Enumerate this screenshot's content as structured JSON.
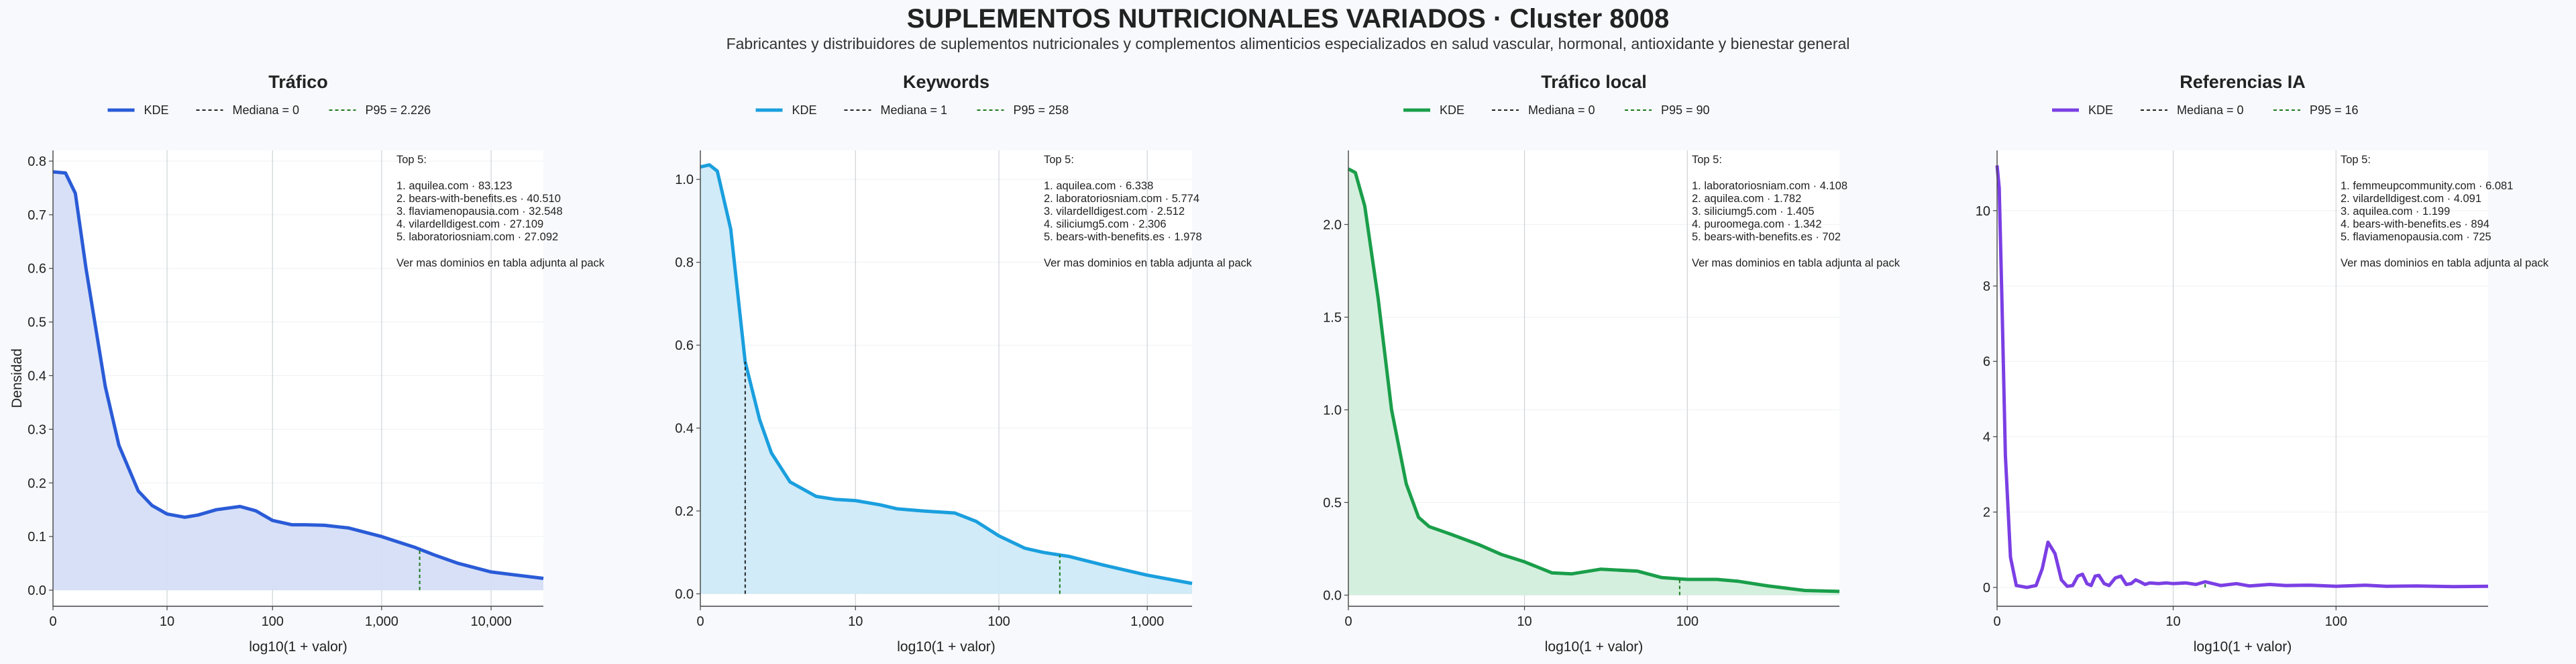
{
  "title": "SUPLEMENTOS NUTRICIONALES VARIADOS · Cluster 8008",
  "subtitle": "Fabricantes y distribuidores de suplementos nutricionales y complementos alimenticios especializados en salud vascular, hormonal, antioxidante y bienestar general",
  "chart_data": [
    {
      "type": "area",
      "title": "Tráfico",
      "xlabel": "log10(1 + valor)",
      "ylabel": "Densidad",
      "x_scale": "log10(1+x)",
      "xlim": [
        0,
        30000
      ],
      "ylim": [
        -0.03,
        0.82
      ],
      "x_ticks": [
        0,
        10,
        100,
        1000,
        10000
      ],
      "x_tick_labels": [
        "0",
        "10",
        "100",
        "1,000",
        "10,000"
      ],
      "y_ticks": [
        0,
        0.1,
        0.2,
        0.3,
        0.4,
        0.5,
        0.6,
        0.7,
        0.8
      ],
      "y_tick_labels": [
        "0.0",
        "0.1",
        "0.2",
        "0.3",
        "0.4",
        "0.5",
        "0.6",
        "0.7",
        "0.8"
      ],
      "color": "#2a5bd7",
      "fill": "#d5def7",
      "grid": true,
      "legend": [
        "KDE",
        "Mediana = 0",
        "P95 = 2.226"
      ],
      "median": 0,
      "p95": 2226,
      "series": [
        {
          "name": "KDE",
          "x": [
            0,
            0.3,
            0.6,
            1,
            2,
            3,
            5,
            7,
            10,
            15,
            20,
            30,
            50,
            70,
            100,
            150,
            200,
            300,
            500,
            1000,
            2000,
            3000,
            5000,
            10000,
            30000
          ],
          "y": [
            0.78,
            0.778,
            0.74,
            0.6,
            0.38,
            0.27,
            0.185,
            0.158,
            0.142,
            0.136,
            0.14,
            0.15,
            0.156,
            0.148,
            0.13,
            0.122,
            0.122,
            0.121,
            0.116,
            0.1,
            0.08,
            0.066,
            0.05,
            0.034,
            0.022
          ]
        }
      ],
      "annotation": {
        "heading": "Top 5:",
        "items": [
          "1. aquilea.com · 83.123",
          "2. bears-with-benefits.es · 40.510",
          "3. flaviamenopausia.com · 32.548",
          "4. vilardelldigest.com · 27.109",
          "5. laboratoriosniam.com · 27.092"
        ],
        "note": "Ver mas dominios en tabla adjunta al pack"
      }
    },
    {
      "type": "area",
      "title": "Keywords",
      "xlabel": "log10(1 + valor)",
      "ylabel": "",
      "x_scale": "log10(1+x)",
      "xlim": [
        0,
        2000
      ],
      "ylim": [
        -0.03,
        1.07
      ],
      "x_ticks": [
        0,
        10,
        100,
        1000
      ],
      "x_tick_labels": [
        "0",
        "10",
        "100",
        "1,000"
      ],
      "y_ticks": [
        0,
        0.2,
        0.4,
        0.6,
        0.8,
        1.0
      ],
      "y_tick_labels": [
        "0.0",
        "0.2",
        "0.4",
        "0.6",
        "0.8",
        "1.0"
      ],
      "color": "#1a9fde",
      "fill": "#cfeaf8",
      "grid": true,
      "legend": [
        "KDE",
        "Mediana = 1",
        "P95 = 258"
      ],
      "median": 1,
      "p95": 258,
      "series": [
        {
          "name": "KDE",
          "x": [
            0,
            0.15,
            0.3,
            0.6,
            1,
            1.5,
            2,
            3,
            5,
            7,
            10,
            15,
            20,
            30,
            50,
            70,
            100,
            150,
            200,
            300,
            500,
            1000,
            2000
          ],
          "y": [
            1.03,
            1.035,
            1.02,
            0.88,
            0.56,
            0.42,
            0.34,
            0.27,
            0.235,
            0.228,
            0.225,
            0.215,
            0.205,
            0.2,
            0.195,
            0.175,
            0.14,
            0.11,
            0.1,
            0.09,
            0.07,
            0.045,
            0.025
          ]
        }
      ],
      "annotation": {
        "heading": "Top 5:",
        "items": [
          "1. aquilea.com · 6.338",
          "2. laboratoriosniam.com · 5.774",
          "3. vilardelldigest.com · 2.512",
          "4. siliciumg5.com · 2.306",
          "5. bears-with-benefits.es · 1.978"
        ],
        "note": "Ver mas dominios en tabla adjunta al pack"
      }
    },
    {
      "type": "area",
      "title": "Tráfico local",
      "xlabel": "log10(1 + valor)",
      "ylabel": "",
      "x_scale": "log10(1+x)",
      "xlim": [
        0,
        800
      ],
      "ylim": [
        -0.06,
        2.4
      ],
      "x_ticks": [
        0,
        10,
        100
      ],
      "x_tick_labels": [
        "0",
        "10",
        "100"
      ],
      "y_ticks": [
        0,
        0.5,
        1.0,
        1.5,
        2.0
      ],
      "y_tick_labels": [
        "0.0",
        "0.5",
        "1.0",
        "1.5",
        "2.0"
      ],
      "color": "#1a9e4a",
      "fill": "#d3eedc",
      "grid": true,
      "legend": [
        "KDE",
        "Mediana = 0",
        "P95 = 90"
      ],
      "median": 0,
      "p95": 90,
      "series": [
        {
          "name": "KDE",
          "x": [
            0,
            0.1,
            0.25,
            0.5,
            0.8,
            1.2,
            1.6,
            2,
            3,
            5,
            7,
            10,
            15,
            20,
            30,
            50,
            70,
            100,
            150,
            200,
            300,
            500,
            800
          ],
          "y": [
            2.3,
            2.28,
            2.1,
            1.6,
            1.0,
            0.6,
            0.42,
            0.37,
            0.33,
            0.27,
            0.22,
            0.18,
            0.12,
            0.115,
            0.14,
            0.13,
            0.095,
            0.085,
            0.085,
            0.075,
            0.05,
            0.025,
            0.02
          ]
        }
      ],
      "annotation": {
        "heading": "Top 5:",
        "items": [
          "1. laboratoriosniam.com · 4.108",
          "2. aquilea.com · 1.782",
          "3. siliciumg5.com · 1.405",
          "4. puroomega.com · 1.342",
          "5. bears-with-benefits.es · 702"
        ],
        "note": "Ver mas dominios en tabla adjunta al pack"
      }
    },
    {
      "type": "line",
      "title": "Referencias IA",
      "xlabel": "log10(1 + valor)",
      "ylabel": "",
      "x_scale": "log10(1+x)",
      "xlim": [
        0,
        800
      ],
      "ylim": [
        -0.5,
        11.6
      ],
      "x_ticks": [
        0,
        10,
        100
      ],
      "x_tick_labels": [
        "0",
        "10",
        "100"
      ],
      "y_ticks": [
        0,
        2,
        4,
        6,
        8,
        10
      ],
      "y_tick_labels": [
        "0",
        "2",
        "4",
        "6",
        "8",
        "10"
      ],
      "color": "#7b3fe4",
      "grid": true,
      "legend": [
        "KDE",
        "Mediana = 0",
        "P95 = 16"
      ],
      "median": 0,
      "p95": 16,
      "series": [
        {
          "name": "KDE",
          "x": [
            0,
            0.03,
            0.07,
            0.12,
            0.2,
            0.3,
            0.5,
            0.7,
            0.85,
            1,
            1.2,
            1.4,
            1.6,
            1.8,
            2.0,
            2.2,
            2.4,
            2.6,
            2.8,
            3.0,
            3.3,
            3.6,
            4.0,
            4.4,
            4.8,
            5.2,
            5.6,
            6.0,
            6.5,
            7.0,
            8,
            9,
            10,
            12,
            14,
            16,
            20,
            25,
            30,
            40,
            50,
            70,
            100,
            150,
            200,
            300,
            500,
            800
          ],
          "y": [
            11.2,
            10.6,
            7.5,
            3.5,
            0.8,
            0.05,
            0.0,
            0.05,
            0.5,
            1.2,
            0.9,
            0.2,
            0.03,
            0.05,
            0.3,
            0.35,
            0.1,
            0.05,
            0.3,
            0.32,
            0.1,
            0.05,
            0.25,
            0.3,
            0.08,
            0.1,
            0.2,
            0.15,
            0.08,
            0.12,
            0.1,
            0.12,
            0.1,
            0.12,
            0.08,
            0.15,
            0.05,
            0.1,
            0.04,
            0.08,
            0.05,
            0.06,
            0.03,
            0.06,
            0.03,
            0.04,
            0.02,
            0.03
          ]
        }
      ],
      "annotation": {
        "heading": "Top 5:",
        "items": [
          "1. femmeupcommunity.com · 6.081",
          "2. vilardelldigest.com · 4.091",
          "3. aquilea.com · 1.199",
          "4. bears-with-benefits.es · 894",
          "5. flaviamenopausia.com · 725"
        ],
        "note": "Ver mas dominios en tabla adjunta al pack"
      }
    }
  ]
}
